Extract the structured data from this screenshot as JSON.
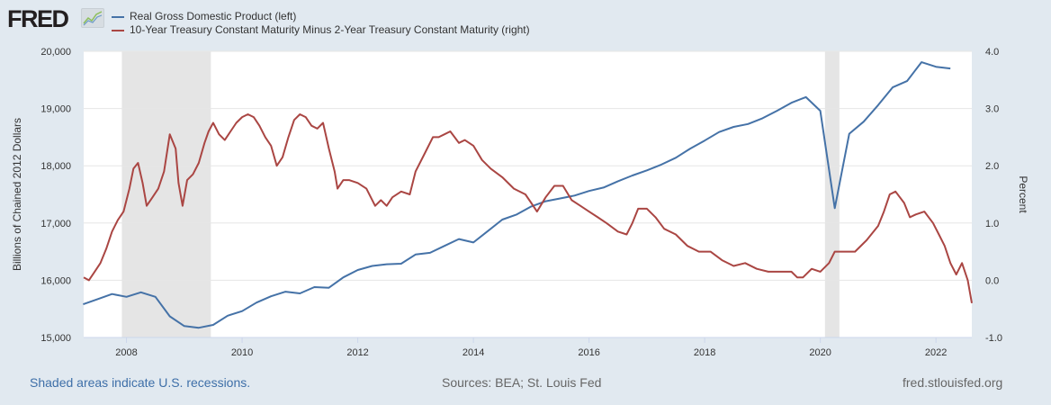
{
  "header": {
    "logo_text": "FRED",
    "logo_icon": "chart-line-icon"
  },
  "footer": {
    "recession_note": "Shaded areas indicate U.S. recessions.",
    "sources": "Sources: BEA; St. Louis Fed",
    "site": "fred.stlouisfed.org"
  },
  "colors": {
    "gdp": "#4572a7",
    "spread": "#aa4643",
    "recession": "#e5e5e5",
    "background": "#e1e9f0",
    "link": "#3e6fa8"
  },
  "chart_data": {
    "type": "line",
    "title": "",
    "legend": [
      "Real Gross Domestic Product (left)",
      "10-Year Treasury Constant Maturity Minus 2-Year Treasury Constant Maturity (right)"
    ],
    "legend_placement": "top-left",
    "xlabel": "",
    "xlim": [
      2007.26,
      2022.62
    ],
    "x_ticks": [
      2008,
      2010,
      2012,
      2014,
      2016,
      2018,
      2020,
      2022
    ],
    "x_tick_labels": [
      "2008",
      "2010",
      "2012",
      "2014",
      "2016",
      "2018",
      "2020",
      "2022"
    ],
    "y_left": {
      "label": "Billions of Chained 2012 Dollars",
      "lim": [
        15000,
        20000
      ],
      "ticks": [
        15000,
        16000,
        17000,
        18000,
        19000,
        20000
      ],
      "tick_labels": [
        "15,000",
        "16,000",
        "17,000",
        "18,000",
        "19,000",
        "20,000"
      ]
    },
    "y_right": {
      "label": "Percent",
      "lim": [
        -1.0,
        4.0
      ],
      "ticks": [
        -1,
        0,
        1,
        2,
        3,
        4
      ],
      "tick_labels": [
        "-1.0",
        "0.0",
        "1.0",
        "2.0",
        "3.0",
        "4.0"
      ]
    },
    "grid": true,
    "recessions": [
      [
        2007.92,
        2009.46
      ],
      [
        2020.08,
        2020.33
      ]
    ],
    "series": [
      {
        "name": "Real Gross Domestic Product (left)",
        "axis": "left",
        "x": [
          2007.25,
          2007.5,
          2007.75,
          2008.0,
          2008.25,
          2008.5,
          2008.75,
          2009.0,
          2009.25,
          2009.5,
          2009.75,
          2010.0,
          2010.25,
          2010.5,
          2010.75,
          2011.0,
          2011.25,
          2011.5,
          2011.75,
          2012.0,
          2012.25,
          2012.5,
          2012.75,
          2013.0,
          2013.25,
          2013.5,
          2013.75,
          2014.0,
          2014.25,
          2014.5,
          2014.75,
          2015.0,
          2015.25,
          2015.5,
          2015.75,
          2016.0,
          2016.25,
          2016.5,
          2016.75,
          2017.0,
          2017.25,
          2017.5,
          2017.75,
          2018.0,
          2018.25,
          2018.5,
          2018.75,
          2019.0,
          2019.25,
          2019.5,
          2019.75,
          2020.0,
          2020.25,
          2020.5,
          2020.75,
          2021.0,
          2021.25,
          2021.5,
          2021.75,
          2022.0,
          2022.25
        ],
        "values": [
          15580,
          15670,
          15760,
          15710,
          15790,
          15710,
          15370,
          15200,
          15170,
          15220,
          15380,
          15460,
          15610,
          15720,
          15800,
          15770,
          15880,
          15870,
          16050,
          16180,
          16250,
          16280,
          16290,
          16450,
          16480,
          16600,
          16720,
          16660,
          16860,
          17060,
          17150,
          17290,
          17380,
          17430,
          17480,
          17560,
          17620,
          17730,
          17830,
          17920,
          18020,
          18140,
          18300,
          18440,
          18590,
          18680,
          18730,
          18830,
          18960,
          19100,
          19200,
          18960,
          17260,
          18560,
          18770,
          19060,
          19370,
          19480,
          19810,
          19730,
          19700
        ]
      },
      {
        "name": "10-Year Treasury Constant Maturity Minus 2-Year Treasury Constant Maturity (right)",
        "axis": "right",
        "x": [
          2007.26,
          2007.35,
          2007.45,
          2007.55,
          2007.65,
          2007.75,
          2007.85,
          2007.95,
          2008.05,
          2008.12,
          2008.2,
          2008.28,
          2008.35,
          2008.45,
          2008.55,
          2008.65,
          2008.75,
          2008.85,
          2008.9,
          2008.97,
          2009.05,
          2009.15,
          2009.25,
          2009.35,
          2009.42,
          2009.5,
          2009.6,
          2009.7,
          2009.8,
          2009.9,
          2010.0,
          2010.1,
          2010.2,
          2010.3,
          2010.4,
          2010.5,
          2010.6,
          2010.7,
          2010.8,
          2010.9,
          2011.0,
          2011.1,
          2011.2,
          2011.3,
          2011.4,
          2011.5,
          2011.6,
          2011.65,
          2011.75,
          2011.85,
          2012.0,
          2012.15,
          2012.3,
          2012.4,
          2012.5,
          2012.6,
          2012.75,
          2012.9,
          2013.0,
          2013.15,
          2013.3,
          2013.4,
          2013.5,
          2013.6,
          2013.75,
          2013.85,
          2014.0,
          2014.15,
          2014.3,
          2014.5,
          2014.7,
          2014.9,
          2015.0,
          2015.1,
          2015.25,
          2015.4,
          2015.55,
          2015.7,
          2015.85,
          2016.0,
          2016.15,
          2016.3,
          2016.5,
          2016.65,
          2016.75,
          2016.85,
          2017.0,
          2017.15,
          2017.3,
          2017.5,
          2017.7,
          2017.9,
          2018.1,
          2018.3,
          2018.5,
          2018.7,
          2018.9,
          2019.1,
          2019.3,
          2019.5,
          2019.6,
          2019.7,
          2019.85,
          2020.0,
          2020.15,
          2020.25,
          2020.4,
          2020.6,
          2020.8,
          2021.0,
          2021.1,
          2021.2,
          2021.3,
          2021.45,
          2021.55,
          2021.65,
          2021.8,
          2021.95,
          2022.05,
          2022.15,
          2022.25,
          2022.35,
          2022.45,
          2022.55,
          2022.62
        ],
        "values": [
          0.05,
          0.0,
          0.15,
          0.3,
          0.55,
          0.85,
          1.05,
          1.2,
          1.6,
          1.95,
          2.05,
          1.7,
          1.3,
          1.45,
          1.6,
          1.9,
          2.55,
          2.3,
          1.7,
          1.3,
          1.75,
          1.85,
          2.05,
          2.4,
          2.6,
          2.75,
          2.55,
          2.45,
          2.6,
          2.75,
          2.85,
          2.9,
          2.85,
          2.7,
          2.5,
          2.35,
          2.0,
          2.15,
          2.5,
          2.8,
          2.9,
          2.85,
          2.7,
          2.65,
          2.75,
          2.3,
          1.9,
          1.6,
          1.75,
          1.75,
          1.7,
          1.6,
          1.3,
          1.4,
          1.3,
          1.45,
          1.55,
          1.5,
          1.9,
          2.2,
          2.5,
          2.5,
          2.55,
          2.6,
          2.4,
          2.45,
          2.35,
          2.1,
          1.95,
          1.8,
          1.6,
          1.5,
          1.35,
          1.2,
          1.45,
          1.65,
          1.65,
          1.4,
          1.3,
          1.2,
          1.1,
          1.0,
          0.85,
          0.8,
          1.0,
          1.25,
          1.25,
          1.1,
          0.9,
          0.8,
          0.6,
          0.5,
          0.5,
          0.35,
          0.25,
          0.3,
          0.2,
          0.15,
          0.15,
          0.15,
          0.05,
          0.05,
          0.2,
          0.15,
          0.3,
          0.5,
          0.5,
          0.5,
          0.7,
          0.95,
          1.2,
          1.5,
          1.55,
          1.35,
          1.1,
          1.15,
          1.2,
          1.0,
          0.8,
          0.6,
          0.3,
          0.1,
          0.3,
          0.0,
          -0.4
        ]
      }
    ]
  }
}
